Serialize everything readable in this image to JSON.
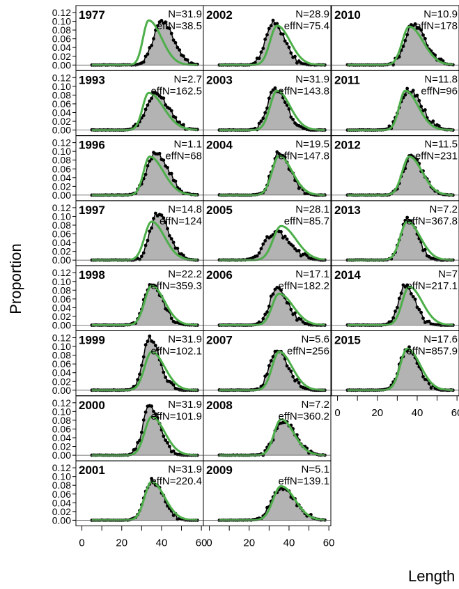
{
  "chart_data": {
    "type": "area",
    "ylabel": "Proportion",
    "xlabel": "Length",
    "xlim": [
      0,
      60
    ],
    "ylim": [
      0,
      0.12
    ],
    "x_ticks": [
      "0",
      "20",
      "40",
      "60"
    ],
    "y_ticks": [
      "0.00",
      "0.02",
      "0.04",
      "0.06",
      "0.08",
      "0.10",
      "0.12"
    ],
    "obs_color": "#000000",
    "obs_fill": "#b3b3b3",
    "fit_color": "#4daf4a",
    "panels": [
      {
        "year": "1977",
        "n_label": "N=31.9",
        "effn_label": "effN=38.5",
        "obs_mode": 40,
        "obs_sd": 4.8,
        "obs_peak": 0.1,
        "fit_mode": 33.5,
        "fit_sd_l": 2.8,
        "fit_sd_r": 6.5,
        "fit_peak": 0.102
      },
      {
        "year": "1993",
        "n_label": "N=2.7",
        "effn_label": "effN=162.5",
        "obs_mode": 37,
        "obs_sd": 5.5,
        "obs_peak": 0.082,
        "fit_mode": 33.5,
        "fit_sd_l": 3.0,
        "fit_sd_r": 7.5,
        "fit_peak": 0.085
      },
      {
        "year": "1996",
        "n_label": "N=1.1",
        "effn_label": "effN=68",
        "obs_mode": 37,
        "obs_sd": 5.0,
        "obs_peak": 0.098,
        "fit_mode": 34,
        "fit_sd_l": 3.0,
        "fit_sd_r": 7.0,
        "fit_peak": 0.088
      },
      {
        "year": "1997",
        "n_label": "N=14.8",
        "effn_label": "effN=124",
        "obs_mode": 38,
        "obs_sd": 4.5,
        "obs_peak": 0.105,
        "fit_mode": 35,
        "fit_sd_l": 3.5,
        "fit_sd_r": 6.5,
        "fit_peak": 0.088
      },
      {
        "year": "1998",
        "n_label": "N=22.2",
        "effn_label": "effN=359.3",
        "obs_mode": 35,
        "obs_sd": 4.5,
        "obs_peak": 0.092,
        "fit_mode": 35,
        "fit_sd_l": 3.5,
        "fit_sd_r": 6.5,
        "fit_peak": 0.09
      },
      {
        "year": "1999",
        "n_label": "N=31.9",
        "effn_label": "effN=102.1",
        "obs_mode": 34,
        "obs_sd": 4.0,
        "obs_peak": 0.12,
        "fit_mode": 35,
        "fit_sd_l": 3.5,
        "fit_sd_r": 6.5,
        "fit_peak": 0.088
      },
      {
        "year": "2000",
        "n_label": "N=31.9",
        "effn_label": "effN=101.9",
        "obs_mode": 34,
        "obs_sd": 4.0,
        "obs_peak": 0.115,
        "fit_mode": 35,
        "fit_sd_l": 3.5,
        "fit_sd_r": 6.5,
        "fit_peak": 0.088
      },
      {
        "year": "2001",
        "n_label": "N=31.9",
        "effn_label": "effN=220.4",
        "obs_mode": 35,
        "obs_sd": 4.5,
        "obs_peak": 0.09,
        "fit_mode": 35,
        "fit_sd_l": 3.5,
        "fit_sd_r": 6.5,
        "fit_peak": 0.088
      },
      {
        "year": "2002",
        "n_label": "N=28.9",
        "effn_label": "effN=75.4",
        "obs_mode": 32,
        "obs_sd": 4.5,
        "obs_peak": 0.098,
        "fit_mode": 34,
        "fit_sd_l": 3.5,
        "fit_sd_r": 6.5,
        "fit_peak": 0.09
      },
      {
        "year": "2003",
        "n_label": "N=31.9",
        "effn_label": "effN=143.8",
        "obs_mode": 33,
        "obs_sd": 4.5,
        "obs_peak": 0.095,
        "fit_mode": 34,
        "fit_sd_l": 3.5,
        "fit_sd_r": 6.5,
        "fit_peak": 0.09
      },
      {
        "year": "2004",
        "n_label": "N=19.5",
        "effn_label": "effN=147.8",
        "obs_mode": 35,
        "obs_sd": 4.5,
        "obs_peak": 0.096,
        "fit_mode": 35,
        "fit_sd_l": 3.5,
        "fit_sd_r": 6.5,
        "fit_peak": 0.09
      },
      {
        "year": "2005",
        "n_label": "N=28.1",
        "effn_label": "effN=85.7",
        "obs_mode": 33,
        "obs_sd": 6.0,
        "obs_peak": 0.065,
        "fit_mode": 36,
        "fit_sd_l": 4.0,
        "fit_sd_r": 7.5,
        "fit_peak": 0.078
      },
      {
        "year": "2006",
        "n_label": "N=17.1",
        "effn_label": "effN=182.2",
        "obs_mode": 34,
        "obs_sd": 4.5,
        "obs_peak": 0.082,
        "fit_mode": 35,
        "fit_sd_l": 3.5,
        "fit_sd_r": 7.0,
        "fit_peak": 0.072
      },
      {
        "year": "2007",
        "n_label": "N=5.6",
        "effn_label": "effN=256",
        "obs_mode": 34,
        "obs_sd": 4.5,
        "obs_peak": 0.09,
        "fit_mode": 35,
        "fit_sd_l": 3.5,
        "fit_sd_r": 6.5,
        "fit_peak": 0.088
      },
      {
        "year": "2008",
        "n_label": "N=7.2",
        "effn_label": "effN=360.2",
        "obs_mode": 37,
        "obs_sd": 5.0,
        "obs_peak": 0.08,
        "fit_mode": 36,
        "fit_sd_l": 3.5,
        "fit_sd_r": 6.5,
        "fit_peak": 0.082
      },
      {
        "year": "2009",
        "n_label": "N=5.1",
        "effn_label": "effN=139.1",
        "obs_mode": 36,
        "obs_sd": 5.5,
        "obs_peak": 0.075,
        "fit_mode": 36,
        "fit_sd_l": 4.0,
        "fit_sd_r": 7.0,
        "fit_peak": 0.078
      },
      {
        "year": "2010",
        "n_label": "N=10.9",
        "effn_label": "effN=178",
        "obs_mode": 38,
        "obs_sd": 5.0,
        "obs_peak": 0.092,
        "fit_mode": 36,
        "fit_sd_l": 3.5,
        "fit_sd_r": 7.0,
        "fit_peak": 0.088
      },
      {
        "year": "2011",
        "n_label": "N=11.8",
        "effn_label": "effN=96",
        "obs_mode": 36,
        "obs_sd": 5.0,
        "obs_peak": 0.092,
        "fit_mode": 34,
        "fit_sd_l": 3.0,
        "fit_sd_r": 6.5,
        "fit_peak": 0.09
      },
      {
        "year": "2012",
        "n_label": "N=11.5",
        "effn_label": "effN=231",
        "obs_mode": 37,
        "obs_sd": 4.5,
        "obs_peak": 0.088,
        "fit_mode": 36,
        "fit_sd_l": 3.5,
        "fit_sd_r": 6.5,
        "fit_peak": 0.088
      },
      {
        "year": "2013",
        "n_label": "N=7.2",
        "effn_label": "effN=367.8",
        "obs_mode": 35,
        "obs_sd": 4.0,
        "obs_peak": 0.095,
        "fit_mode": 35,
        "fit_sd_l": 3.5,
        "fit_sd_r": 6.5,
        "fit_peak": 0.088
      },
      {
        "year": "2014",
        "n_label": "N=7",
        "effn_label": "effN=217.1",
        "obs_mode": 34,
        "obs_sd": 4.0,
        "obs_peak": 0.09,
        "fit_mode": 36,
        "fit_sd_l": 3.5,
        "fit_sd_r": 6.5,
        "fit_peak": 0.088
      },
      {
        "year": "2015",
        "n_label": "N=17.6",
        "effn_label": "effN=857.9",
        "obs_mode": 35,
        "obs_sd": 4.5,
        "obs_peak": 0.095,
        "fit_mode": 35,
        "fit_sd_l": 3.5,
        "fit_sd_r": 6.5,
        "fit_peak": 0.095
      }
    ]
  }
}
